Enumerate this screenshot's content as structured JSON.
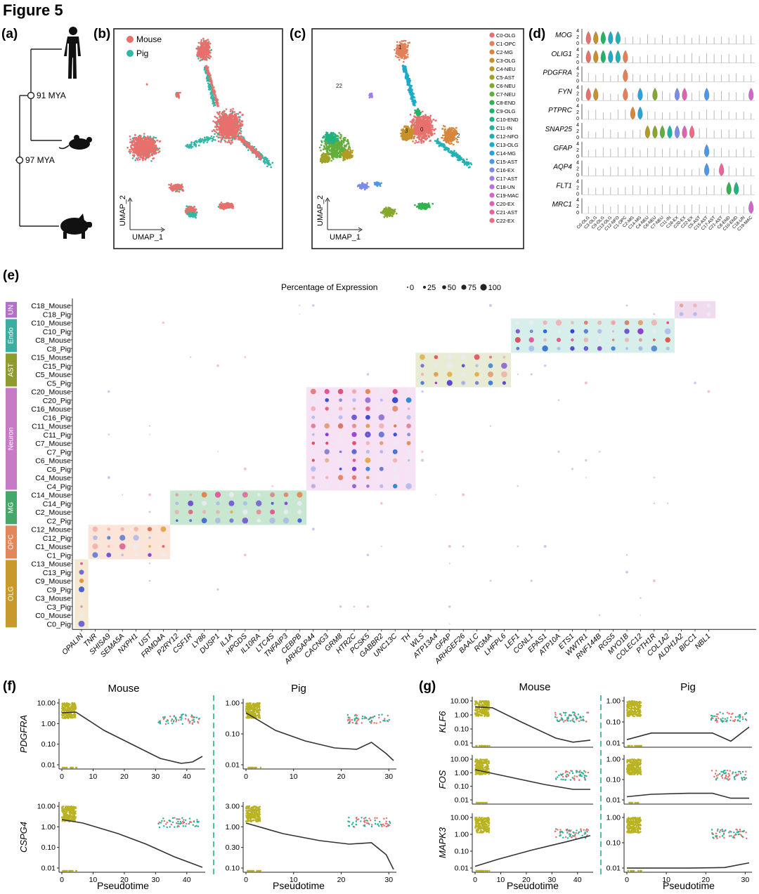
{
  "figure_title": "Figure 5",
  "panels": {
    "a": {
      "label": "(a)",
      "nodes": [
        "91 MYA",
        "97 MYA"
      ],
      "species_icons": [
        "human-silhouette-icon",
        "mouse-silhouette-icon",
        "pig-silhouette-icon"
      ]
    },
    "b": {
      "label": "(b)",
      "legend": [
        {
          "name": "Mouse",
          "color": "#e8706c"
        },
        {
          "name": "Pig",
          "color": "#2fb8a6"
        }
      ],
      "xlabel": "UMAP_1",
      "ylabel": "UMAP_2"
    },
    "c": {
      "label": "(c)",
      "xlabel": "UMAP_1",
      "ylabel": "UMAP_2",
      "cluster_numbers": [
        "1",
        "0",
        "2",
        "3",
        "22"
      ],
      "legend": [
        {
          "name": "C0-OLG",
          "color": "#e8706c"
        },
        {
          "name": "C1-OPC",
          "color": "#e3805a"
        },
        {
          "name": "C2-MG",
          "color": "#d8863c"
        },
        {
          "name": "C3-OLG",
          "color": "#c6902a"
        },
        {
          "name": "C4-NEU",
          "color": "#b39a25"
        },
        {
          "name": "C5-AST",
          "color": "#9ea225"
        },
        {
          "name": "C6-NEU",
          "color": "#85a82c"
        },
        {
          "name": "C7-NEU",
          "color": "#62ae3a"
        },
        {
          "name": "C8-END",
          "color": "#32b24c"
        },
        {
          "name": "C9-OLG",
          "color": "#1fb466"
        },
        {
          "name": "C10-END",
          "color": "#1db482"
        },
        {
          "name": "C11-IN",
          "color": "#20b39c"
        },
        {
          "name": "C12-NFO",
          "color": "#21b0b4"
        },
        {
          "name": "C13-OLG",
          "color": "#1eabcb"
        },
        {
          "name": "C14-MG",
          "color": "#27a3dd"
        },
        {
          "name": "C15-AST",
          "color": "#4a98e8"
        },
        {
          "name": "C16-EX",
          "color": "#7a8beb"
        },
        {
          "name": "C17-AST",
          "color": "#9d7de6"
        },
        {
          "name": "C18-UN",
          "color": "#bb70d9"
        },
        {
          "name": "C19-MAC",
          "color": "#d166c6"
        },
        {
          "name": "C20-EX",
          "color": "#e062ae"
        },
        {
          "name": "C21-AST",
          "color": "#e8659a"
        },
        {
          "name": "C22-EX",
          "color": "#ec6a84"
        }
      ]
    },
    "d": {
      "label": "(d)",
      "genes": [
        "MOG",
        "OLIG1",
        "PDGFRA",
        "FYN",
        "PTPRC",
        "SNAP25",
        "GFAP",
        "AQP4",
        "FLT1",
        "MRC1"
      ],
      "yticks": [
        "4",
        "2",
        "0"
      ],
      "clusters": [
        "C0-OLG",
        "C3-OLG",
        "C9-OLG",
        "C13-OLG",
        "C12-NFO",
        "C1-OPC",
        "C2-MG",
        "C14-MG",
        "C4-NEU",
        "C6-NEU",
        "C7-NEU",
        "C11-IN",
        "C16-EX",
        "C20-EX",
        "C22-EX",
        "C5-AST",
        "C15-AST",
        "C17-AST",
        "C21-AST",
        "C8-END",
        "C10-END",
        "C18-UN",
        "C19-MAC"
      ]
    },
    "e": {
      "label": "(e)",
      "legend_title": "Percentage of Expression",
      "legend_items": [
        "0",
        "25",
        "50",
        "75",
        "100"
      ],
      "rows": [
        "C18_Mouse",
        "C18_Pig",
        "C10_Mouse",
        "C10_Pig",
        "C8_Mouse",
        "C8_Pig",
        "C15_Mouse",
        "C15_Pig",
        "C5_Mouse",
        "C5_Pig",
        "C20_Mouse",
        "C20_Pig",
        "C16_Mouse",
        "C16_Pig",
        "C11_Mouse",
        "C11_Pig",
        "C7_Mouse",
        "C7_Pig",
        "C6_Mouse",
        "C6_Pig",
        "C4_Mouse",
        "C4_Pig",
        "C14_Mouse",
        "C14_Pig",
        "C2_Mouse",
        "C2_Pig",
        "C12_Mouse",
        "C12_Pig",
        "C1_Mouse",
        "C1_Pig",
        "C13_Mouse",
        "C13_Pig",
        "C9_Mouse",
        "C9_Pig",
        "C3_Mouse",
        "C3_Pig",
        "C0_Mouse",
        "C0_Pig"
      ],
      "groups": [
        {
          "name": "UN",
          "color": "#b370c9"
        },
        {
          "name": "Endo",
          "color": "#3aaea0"
        },
        {
          "name": "AST",
          "color": "#8e9b2e"
        },
        {
          "name": "Neuron",
          "color": "#c77bc6"
        },
        {
          "name": "MG",
          "color": "#45a86a"
        },
        {
          "name": "OPC",
          "color": "#e2875a"
        },
        {
          "name": "OLG",
          "color": "#c79a2b"
        }
      ],
      "genes": [
        "OPALIN",
        "TNR",
        "SHISA9",
        "SEMA5A",
        "NXPH1",
        "UST",
        "FRMD4A",
        "P2RY12",
        "CSF1R",
        "LY86",
        "DUSP1",
        "IL1A",
        "HPGDS",
        "IL10RA",
        "LTC4S",
        "TNFAIP3",
        "CEBPB",
        "ARHGAP44",
        "CACNG3",
        "GRM8",
        "HTR2C",
        "PCSK5",
        "GABBR2",
        "UNC13C",
        "TH",
        "WLS",
        "ATP13A4",
        "GFAP",
        "ARHGEF26",
        "BAALC",
        "RGMA",
        "LHFPL6",
        "LEF1",
        "CGNL1",
        "EPAS1",
        "ATP10A",
        "ETS1",
        "WWTR1",
        "RNF144B",
        "RGS5",
        "MYO1B",
        "COLEC12",
        "PTH1R",
        "COL1A2",
        "ALDH1A2",
        "BICC1",
        "NBL1"
      ]
    },
    "f": {
      "label": "(f)",
      "column_titles": [
        "Mouse",
        "Pig"
      ],
      "row_genes": [
        "PDGFRA",
        "CSPG4"
      ],
      "xlabel": "Pseudotime",
      "mouse_xticks": [
        "0",
        "10",
        "20",
        "30",
        "40"
      ],
      "pig_xticks": [
        "0",
        "10",
        "20",
        "30"
      ],
      "y_ticks": {
        "PDGFRA_Mouse": [
          "10.00",
          "1.00",
          "0.10",
          "0.01"
        ],
        "PDGFRA_Pig": [
          "1.00",
          "0.10",
          "0.01"
        ],
        "CSPG4_Mouse": [
          "10.00",
          "1.00",
          "0.10",
          "0.01"
        ],
        "CSPG4_Pig": [
          "3.00",
          "1.00",
          "0.30",
          "0.10"
        ]
      }
    },
    "g": {
      "label": "(g)",
      "column_titles": [
        "Mouse",
        "Pig"
      ],
      "row_genes": [
        "KLF6",
        "FOS",
        "MAPK3"
      ],
      "xlabel": "Pseudotime",
      "mouse_xticks": [
        "0",
        "10",
        "20",
        "30",
        "40"
      ],
      "pig_xticks": [
        "0",
        "10",
        "20",
        "30"
      ],
      "y_ticks": {
        "KLF6_Mouse": [
          "10.00",
          "1.00",
          "0.10",
          "0.01"
        ],
        "KLF6_Pig": [
          "1.00",
          "0.10",
          "0.01"
        ],
        "FOS_Mouse": [
          "10.00",
          "1.00",
          "0.10",
          "0.01"
        ],
        "FOS_Pig": [
          "1.00",
          "0.10",
          "0.01"
        ],
        "MAPK3_Mouse": [
          "10.00",
          "1.00",
          "0.10",
          "0.01"
        ],
        "MAPK3_Pig": [
          "1.00",
          "0.10",
          "0.01"
        ]
      }
    }
  }
}
